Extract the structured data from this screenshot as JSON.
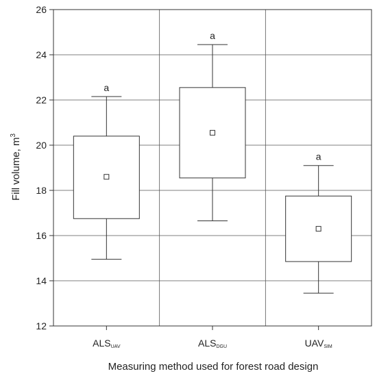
{
  "chart_data": {
    "type": "box",
    "ylabel": "Fill volume, m",
    "ylabel_sup": "3",
    "xlabel": "Measuring method used for forest road design",
    "ylim": [
      12,
      26
    ],
    "yticks": [
      12,
      14,
      16,
      18,
      20,
      22,
      24,
      26
    ],
    "grid": true,
    "categories": [
      {
        "base": "ALS",
        "sub": "UAV"
      },
      {
        "base": "ALS",
        "sub": "DGU"
      },
      {
        "base": "UAV",
        "sub": "SIM"
      }
    ],
    "boxes": [
      {
        "min": 14.95,
        "q1": 16.75,
        "mean": 18.6,
        "q3": 20.4,
        "max": 22.15,
        "group": "a"
      },
      {
        "min": 16.65,
        "q1": 18.55,
        "mean": 20.55,
        "q3": 22.55,
        "max": 24.45,
        "group": "a"
      },
      {
        "min": 13.45,
        "q1": 14.85,
        "mean": 16.3,
        "q3": 17.75,
        "max": 19.1,
        "group": "a"
      }
    ],
    "colors": {
      "axis": "#333333",
      "grid": "#555555",
      "box_fill": "#ffffff"
    }
  }
}
